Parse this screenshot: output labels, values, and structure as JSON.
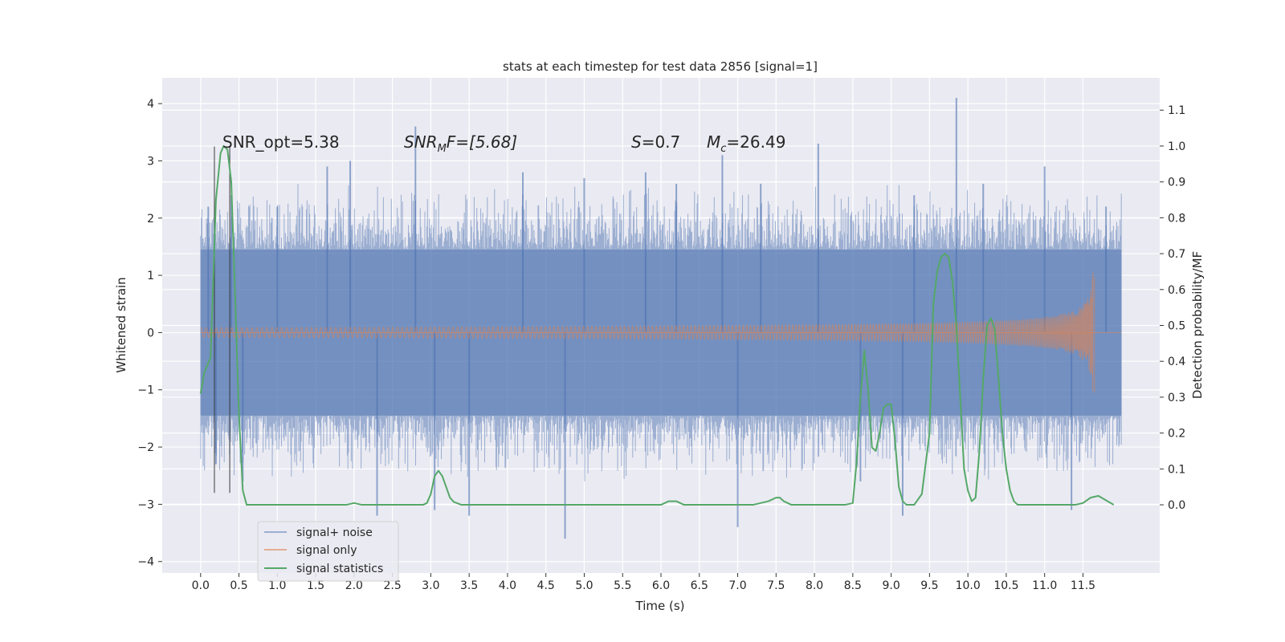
{
  "chart_data": {
    "type": "line",
    "title": "stats at each timestep for test data 2856 [signal=1]",
    "xlabel": "Time (s)",
    "ylabel_left": "Whitened strain",
    "ylabel_right": "Detection probability/MF",
    "xlim": [
      -0.5,
      12.5
    ],
    "ylim_left": [
      -4.2,
      4.45
    ],
    "ylim_right": [
      -0.19,
      1.19
    ],
    "x_ticks": [
      "0.0",
      "0.5",
      "1.0",
      "1.5",
      "2.0",
      "2.5",
      "3.0",
      "3.5",
      "4.0",
      "4.5",
      "5.0",
      "5.5",
      "6.0",
      "6.5",
      "7.0",
      "7.5",
      "8.0",
      "8.5",
      "9.0",
      "9.5",
      "10.0",
      "10.5",
      "11.0",
      "11.5"
    ],
    "y_ticks_left": [
      "4",
      "3",
      "2",
      "1",
      "0",
      "−1",
      "−2",
      "−3",
      "−4"
    ],
    "y_ticks_right": [
      "1.1",
      "1.0",
      "0.9",
      "0.8",
      "0.7",
      "0.6",
      "0.5",
      "0.4",
      "0.3",
      "0.2",
      "0.1",
      "0.0"
    ],
    "grid": true,
    "legend_position": "lower-left",
    "annotations": {
      "snr_opt": "SNR_opt=5.38",
      "snr_mf_base": "SNR",
      "snr_mf_sub": "M",
      "snr_mf_rest": "F=[5.68]",
      "s_base": "S",
      "s_rest": "=0.7",
      "mc_base": "M",
      "mc_sub": "c",
      "mc_rest": "=26.49"
    },
    "vlines_x": [
      0.18,
      0.38
    ],
    "series": [
      {
        "name": "signal+ noise",
        "color": "#4c72b0",
        "axis": "left",
        "description_band": [
          -1.45,
          1.45
        ],
        "spikes": [
          [
            0.1,
            2.2
          ],
          [
            0.2,
            -2.3
          ],
          [
            0.4,
            2.4
          ],
          [
            0.55,
            -2.6
          ],
          [
            1.0,
            2.2
          ],
          [
            1.65,
            2.9
          ],
          [
            1.95,
            3.0
          ],
          [
            2.3,
            -3.2
          ],
          [
            2.8,
            3.6
          ],
          [
            3.05,
            -3.1
          ],
          [
            3.5,
            -3.2
          ],
          [
            4.2,
            2.8
          ],
          [
            4.75,
            -3.6
          ],
          [
            5.0,
            2.7
          ],
          [
            5.8,
            2.8
          ],
          [
            6.2,
            2.6
          ],
          [
            6.8,
            3.1
          ],
          [
            7.0,
            -3.4
          ],
          [
            7.3,
            2.6
          ],
          [
            8.05,
            3.3
          ],
          [
            8.6,
            -2.6
          ],
          [
            9.15,
            -3.2
          ],
          [
            9.3,
            2.4
          ],
          [
            9.85,
            4.1
          ],
          [
            10.2,
            2.6
          ],
          [
            11.0,
            2.9
          ],
          [
            11.35,
            -3.1
          ],
          [
            11.8,
            2.2
          ]
        ]
      },
      {
        "name": "signal only",
        "color": "#dd8452",
        "axis": "left",
        "chirp_end_x": 11.65,
        "chirp_peak_amp": 1.1
      },
      {
        "name": "signal statistics",
        "color": "#55a868",
        "axis": "right",
        "x": [
          0.0,
          0.05,
          0.13,
          0.2,
          0.26,
          0.3,
          0.35,
          0.4,
          0.45,
          0.5,
          0.55,
          0.6,
          0.7,
          1.0,
          1.5,
          1.9,
          2.0,
          2.1,
          2.5,
          2.9,
          2.95,
          3.0,
          3.05,
          3.1,
          3.15,
          3.2,
          3.25,
          3.3,
          3.4,
          3.6,
          4.0,
          4.5,
          5.0,
          5.5,
          6.0,
          6.1,
          6.2,
          6.3,
          6.4,
          7.0,
          7.2,
          7.4,
          7.5,
          7.55,
          7.6,
          7.7,
          8.0,
          8.4,
          8.5,
          8.55,
          8.6,
          8.65,
          8.7,
          8.75,
          8.8,
          8.85,
          8.9,
          8.95,
          9.0,
          9.05,
          9.1,
          9.15,
          9.2,
          9.3,
          9.4,
          9.5,
          9.55,
          9.6,
          9.65,
          9.7,
          9.75,
          9.8,
          9.85,
          9.9,
          9.95,
          10.0,
          10.05,
          10.1,
          10.15,
          10.2,
          10.25,
          10.3,
          10.35,
          10.4,
          10.45,
          10.5,
          10.55,
          10.6,
          10.65,
          10.7,
          10.8,
          11.0,
          11.3,
          11.4,
          11.5,
          11.6,
          11.7,
          11.9
        ],
        "values": [
          0.31,
          0.37,
          0.41,
          0.85,
          0.98,
          1.0,
          0.99,
          0.9,
          0.58,
          0.25,
          0.04,
          0.0,
          0.0,
          0.0,
          0.0,
          0.0,
          0.005,
          0.0,
          0.0,
          0.0,
          0.005,
          0.03,
          0.08,
          0.095,
          0.08,
          0.05,
          0.02,
          0.008,
          0.0,
          0.0,
          0.0,
          0.0,
          0.0,
          0.0,
          0.0,
          0.01,
          0.01,
          0.0,
          0.0,
          0.0,
          0.0,
          0.01,
          0.02,
          0.02,
          0.01,
          0.0,
          0.0,
          0.0,
          0.005,
          0.12,
          0.3,
          0.43,
          0.32,
          0.16,
          0.15,
          0.2,
          0.27,
          0.28,
          0.28,
          0.18,
          0.05,
          0.01,
          0.0,
          0.0,
          0.03,
          0.2,
          0.56,
          0.65,
          0.69,
          0.7,
          0.69,
          0.62,
          0.5,
          0.3,
          0.1,
          0.04,
          0.01,
          0.02,
          0.15,
          0.35,
          0.5,
          0.52,
          0.49,
          0.35,
          0.2,
          0.1,
          0.04,
          0.01,
          0.0,
          0.0,
          0.0,
          0.0,
          0.0,
          0.0,
          0.005,
          0.02,
          0.025,
          0.0
        ]
      }
    ]
  }
}
